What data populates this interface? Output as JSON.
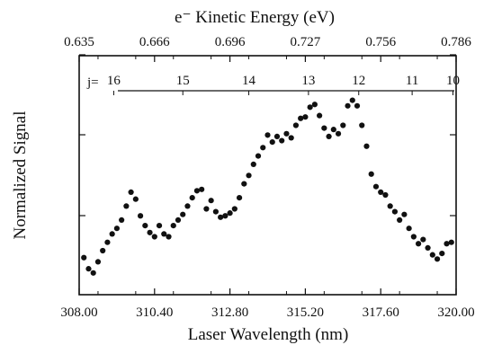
{
  "chart_data": {
    "type": "scatter",
    "title": "",
    "xlabel": "Laser Wavelength (nm)",
    "ylabel": "Normalized Signal",
    "top_axis_label": "e⁻ Kinetic Energy (eV)",
    "xlim": [
      308.0,
      320.0
    ],
    "x_ticks": [
      "308.00",
      "310.40",
      "312.80",
      "315.20",
      "317.60",
      "320.00"
    ],
    "top_ticks": [
      "0.635",
      "0.666",
      "0.696",
      "0.727",
      "0.756",
      "0.786"
    ],
    "y_ticks_labeled": false,
    "grid": false,
    "j_progression": {
      "prefix": "j=",
      "labels": [
        {
          "j": "16",
          "x": 309.1
        },
        {
          "j": "15",
          "x": 311.3
        },
        {
          "j": "14",
          "x": 313.4
        },
        {
          "j": "13",
          "x": 315.3
        },
        {
          "j": "12",
          "x": 316.9
        },
        {
          "j": "11",
          "x": 318.6
        },
        {
          "j": "10",
          "x": 319.9
        }
      ]
    },
    "series": [
      {
        "x": [
          308.15,
          308.3,
          308.45,
          308.6,
          308.75,
          308.9,
          309.05,
          309.2,
          309.35,
          309.5,
          309.65,
          309.8,
          309.95,
          310.1,
          310.25,
          310.4,
          310.55,
          310.7,
          310.85,
          311.0,
          311.15,
          311.3,
          311.45,
          311.6,
          311.75,
          311.9,
          312.05,
          312.2,
          312.35,
          312.5,
          312.65,
          312.8,
          312.95,
          313.1,
          313.25,
          313.4,
          313.55,
          313.7,
          313.85,
          314.0,
          314.15,
          314.3,
          314.45,
          314.6,
          314.75,
          314.9,
          315.05,
          315.2,
          315.35,
          315.5,
          315.65,
          315.8,
          315.95,
          316.1,
          316.25,
          316.4,
          316.55,
          316.7,
          316.85,
          317.0,
          317.15,
          317.3,
          317.45,
          317.6,
          317.75,
          317.9,
          318.05,
          318.2,
          318.35,
          318.5,
          318.65,
          318.8,
          318.95,
          319.1,
          319.25,
          319.4,
          319.55,
          319.7,
          319.85
        ],
        "y": [
          0.15,
          0.07,
          0.04,
          0.12,
          0.2,
          0.26,
          0.32,
          0.36,
          0.42,
          0.52,
          0.62,
          0.57,
          0.45,
          0.38,
          0.33,
          0.3,
          0.38,
          0.32,
          0.3,
          0.38,
          0.42,
          0.46,
          0.52,
          0.58,
          0.63,
          0.64,
          0.5,
          0.56,
          0.48,
          0.44,
          0.45,
          0.47,
          0.5,
          0.58,
          0.68,
          0.74,
          0.82,
          0.88,
          0.94,
          1.03,
          0.98,
          1.02,
          0.99,
          1.04,
          1.01,
          1.1,
          1.15,
          1.16,
          1.23,
          1.25,
          1.17,
          1.08,
          1.02,
          1.07,
          1.04,
          1.1,
          1.24,
          1.28,
          1.24,
          1.1,
          0.95,
          0.75,
          0.66,
          0.62,
          0.6,
          0.52,
          0.48,
          0.42,
          0.46,
          0.36,
          0.3,
          0.25,
          0.28,
          0.22,
          0.17,
          0.14,
          0.18,
          0.25,
          0.26
        ]
      }
    ]
  }
}
